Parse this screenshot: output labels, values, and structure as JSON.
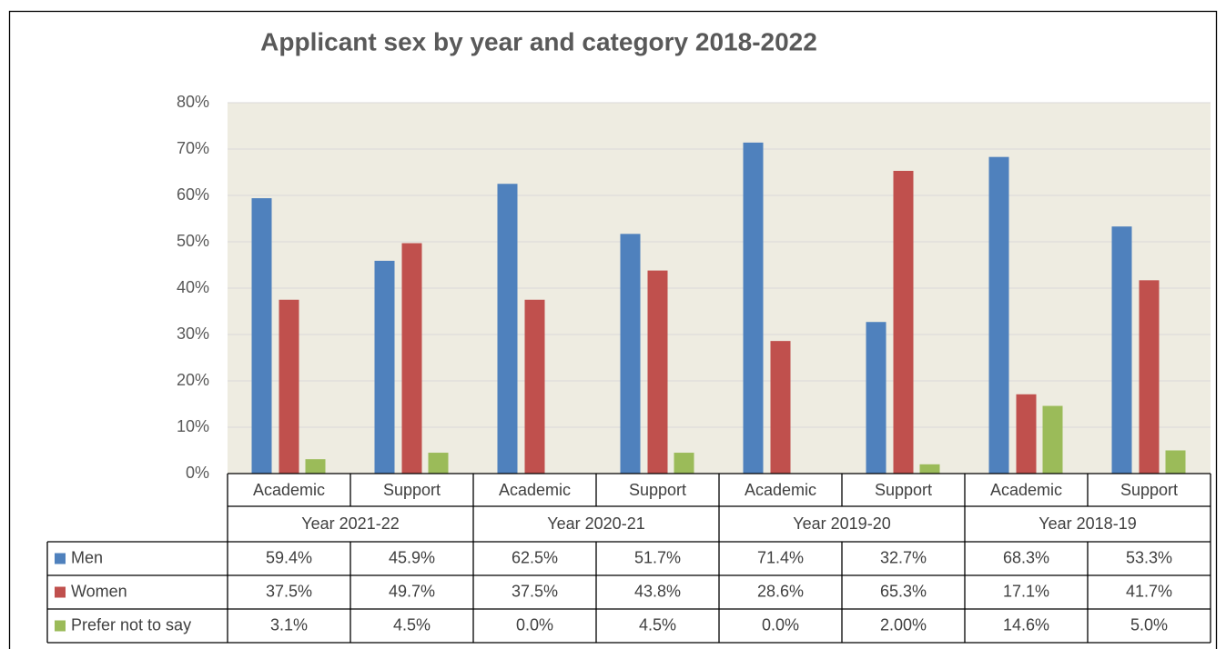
{
  "chart_data": {
    "type": "bar",
    "title": "Applicant sex by year and category 2018-2022",
    "categories": [
      "Academic",
      "Support",
      "Academic",
      "Support",
      "Academic",
      "Support",
      "Academic",
      "Support"
    ],
    "category_groups": [
      "Year 2021-22",
      "Year 2020-21",
      "Year 2019-20",
      "Year 2018-19"
    ],
    "series": [
      {
        "name": "Men",
        "color": "#4f81bd",
        "values": [
          59.4,
          45.9,
          62.5,
          51.7,
          71.4,
          32.7,
          68.3,
          53.3
        ],
        "value_labels": [
          "59.4%",
          "45.9%",
          "62.5%",
          "51.7%",
          "71.4%",
          "32.7%",
          "68.3%",
          "53.3%"
        ]
      },
      {
        "name": "Women",
        "color": "#c0504d",
        "values": [
          37.5,
          49.7,
          37.5,
          43.8,
          28.6,
          65.3,
          17.1,
          41.7
        ],
        "value_labels": [
          "37.5%",
          "49.7%",
          "37.5%",
          "43.8%",
          "28.6%",
          "65.3%",
          "17.1%",
          "41.7%"
        ]
      },
      {
        "name": "Prefer not to say",
        "color": "#9bbb59",
        "values": [
          3.1,
          4.5,
          0.0,
          4.5,
          0.0,
          2.0,
          14.6,
          5.0
        ],
        "value_labels": [
          "3.1%",
          "4.5%",
          "0.0%",
          "4.5%",
          "0.0%",
          "2.00%",
          "14.6%",
          "5.0%"
        ]
      }
    ],
    "ylim": [
      0,
      80
    ],
    "yticks": [
      {
        "value": 0,
        "label": "0%"
      },
      {
        "value": 10,
        "label": "10%"
      },
      {
        "value": 20,
        "label": "20%"
      },
      {
        "value": 30,
        "label": "30%"
      },
      {
        "value": 40,
        "label": "40%"
      },
      {
        "value": 50,
        "label": "50%"
      },
      {
        "value": 60,
        "label": "60%"
      },
      {
        "value": 70,
        "label": "70%"
      },
      {
        "value": 80,
        "label": "80%"
      }
    ],
    "grid": true
  }
}
